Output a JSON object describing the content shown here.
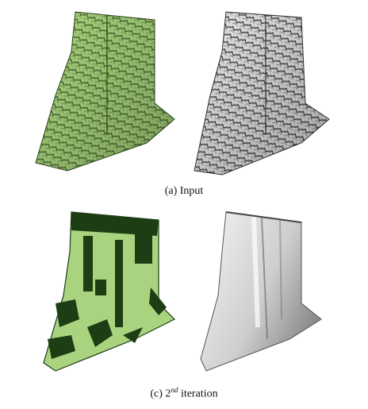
{
  "captions": {
    "top": "(a)  Input",
    "bottom_prefix": "(c)  2",
    "bottom_sup": "nd",
    "bottom_suffix": " iteration"
  },
  "colors": {
    "green_mesh": "#a9d37f",
    "green_dark": "#1d3d14",
    "gray_mesh": "#d9d9d9",
    "gray_dark": "#555555"
  }
}
